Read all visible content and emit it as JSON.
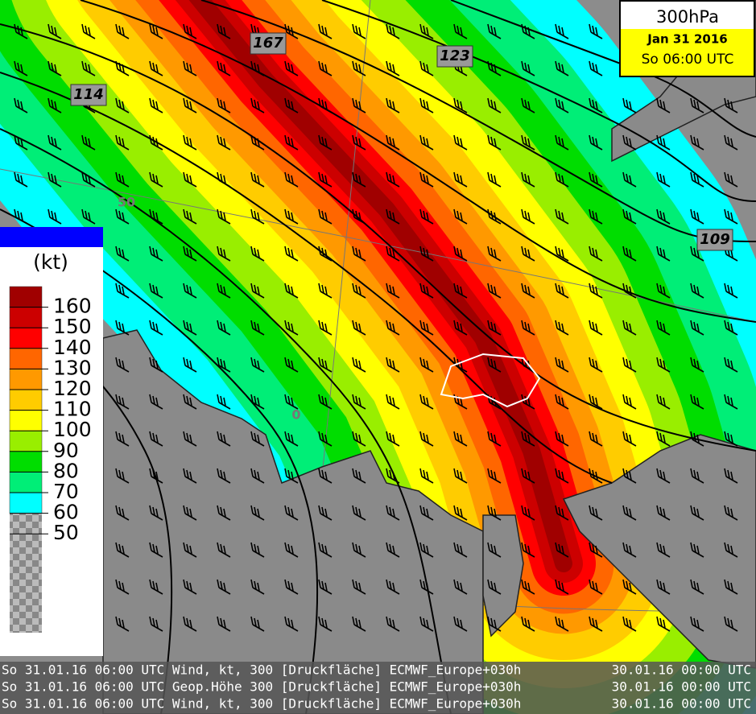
{
  "header": {
    "level": "300hPa",
    "date": "Jan 31 2016",
    "time": "So 06:00 UTC"
  },
  "legend": {
    "unit": "(kt)",
    "labels": [
      160,
      150,
      140,
      130,
      120,
      110,
      100,
      90,
      80,
      70,
      60,
      50
    ],
    "colors": [
      "#a00000",
      "#cc0000",
      "#ff0000",
      "#ff6600",
      "#ff9900",
      "#ffcc00",
      "#ffff00",
      "#99ee00",
      "#00dd00",
      "#00ee77",
      "#00ffff"
    ]
  },
  "contour_labels": [
    167,
    123,
    114,
    109
  ],
  "grid_labels": [
    "50",
    "0"
  ],
  "footer": [
    {
      "left": "So 31.01.16 06:00 UTC  Wind, kt, 300 [Druckfläche] ECMWF_Europe+030h",
      "right": "30.01.16 00:00 UTC"
    },
    {
      "left": "So 31.01.16 06:00 UTC  Geop.Höhe 300 [Druckfläche] ECMWF_Europe+030h",
      "right": "30.01.16 00:00 UTC"
    },
    {
      "left": "So 31.01.16 06:00 UTC  Wind, kt, 300 [Druckfläche] ECMWF_Europe+030h",
      "right": "30.01.16 00:00 UTC"
    }
  ]
}
